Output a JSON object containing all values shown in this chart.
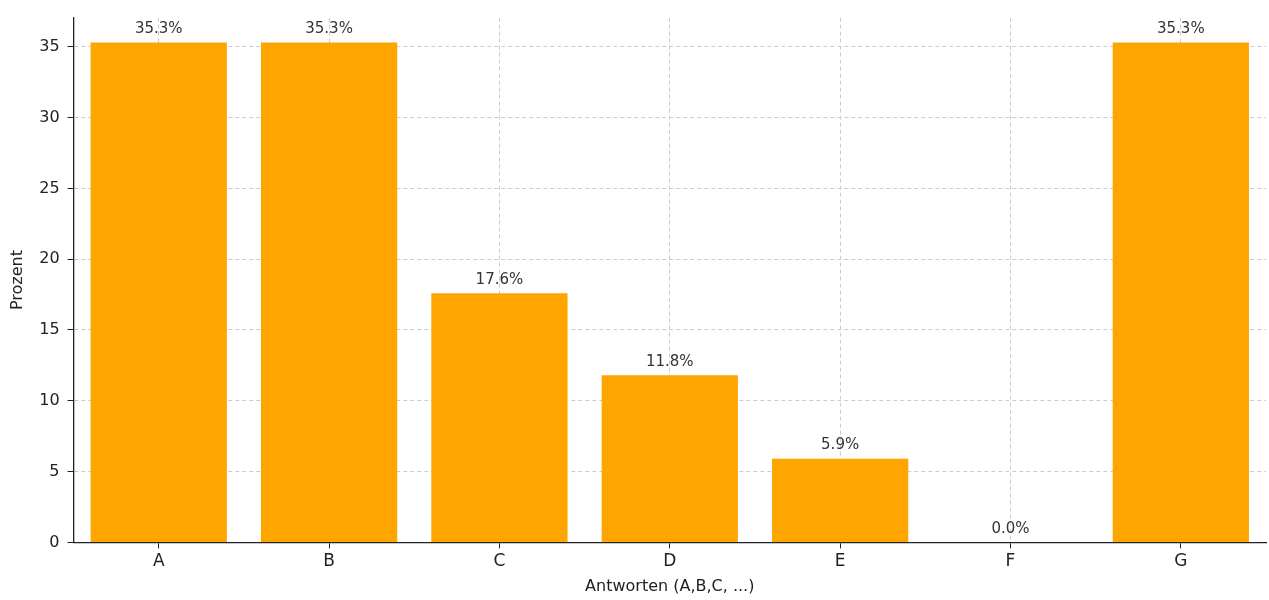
{
  "chart_data": {
    "type": "bar",
    "xlabel": "Antworten (A,B,C, ...)",
    "ylabel": "Prozent",
    "categories": [
      "A",
      "B",
      "C",
      "D",
      "E",
      "F",
      "G"
    ],
    "values": [
      35.3,
      35.3,
      17.6,
      11.8,
      5.9,
      0.0,
      35.3
    ],
    "value_labels": [
      "35.3%",
      "35.3%",
      "17.6%",
      "11.8%",
      "5.9%",
      "0.0%",
      "35.3%"
    ],
    "color": "#ffa500",
    "ylim": [
      0,
      37.06
    ],
    "yticks": [
      0,
      5,
      10,
      15,
      20,
      25,
      30,
      35
    ],
    "grid": true,
    "legend": false
  }
}
